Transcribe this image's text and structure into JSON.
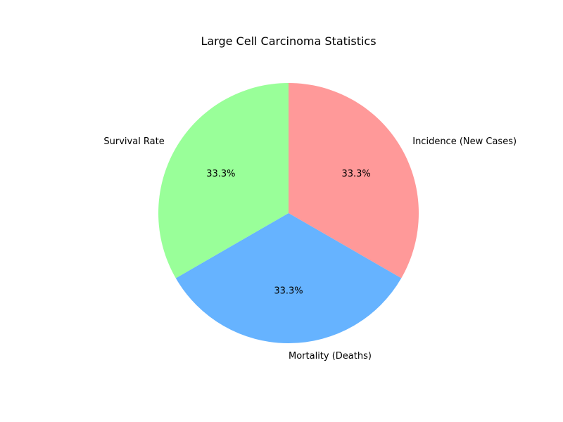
{
  "chart_data": {
    "type": "pie",
    "title": "Large Cell Carcinoma Statistics",
    "start_angle_deg": 90,
    "direction": "clockwise",
    "slices": [
      {
        "label": "Incidence (New Cases)",
        "value": 33.3,
        "percent_label": "33.3%",
        "color": "#ff9999"
      },
      {
        "label": "Mortality (Deaths)",
        "value": 33.3,
        "percent_label": "33.3%",
        "color": "#66b3ff"
      },
      {
        "label": "Survival Rate",
        "value": 33.3,
        "percent_label": "33.3%",
        "color": "#99ff99"
      }
    ]
  }
}
